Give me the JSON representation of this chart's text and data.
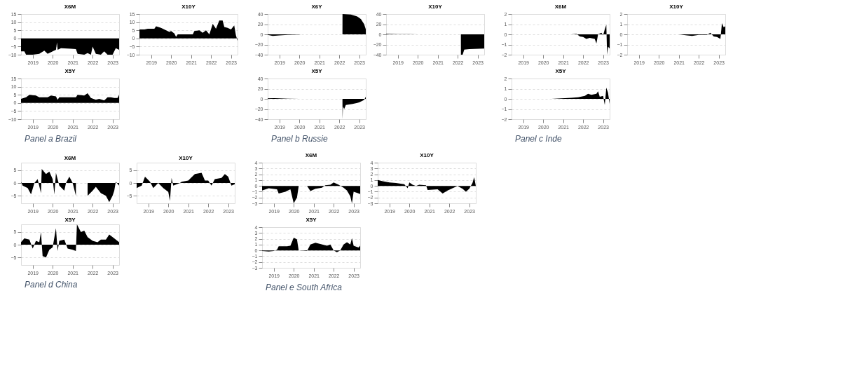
{
  "chart_data": [
    {
      "type": "area",
      "title": "X6M",
      "color": "#000000",
      "grid": "y",
      "xlim": [
        "2018-06",
        "2023-05"
      ],
      "xticks": [
        "2019",
        "2020",
        "2021",
        "2022",
        "2023"
      ],
      "ylim": [
        -10,
        15
      ],
      "yticks": [
        -10,
        -5,
        0,
        5,
        10,
        15
      ],
      "x": [
        "2018-06",
        "2018-08",
        "2018-09",
        "2019-01",
        "2019-05",
        "2019-08",
        "2019-10",
        "2020-01",
        "2020-03",
        "2020-03-20",
        "2020-04",
        "2020-06",
        "2020-12",
        "2021-03",
        "2021-04",
        "2021-08",
        "2021-10",
        "2021-12",
        "2022-01",
        "2022-03",
        "2022-06",
        "2022-08",
        "2022-10",
        "2023-01",
        "2023-03",
        "2023-05"
      ],
      "values": [
        -8,
        -8,
        -10,
        -10,
        -9.5,
        -7.5,
        -9.5,
        -8,
        -7,
        -2.5,
        -7,
        -6,
        -6.3,
        -6.5,
        -9.5,
        -10,
        -9,
        -10,
        -5,
        -9.5,
        -10,
        -8,
        -10,
        -10,
        -6,
        -7
      ]
    },
    {
      "type": "area",
      "title": "X10Y",
      "color": "#000000",
      "grid": "y",
      "xlim": [
        "2018-06",
        "2023-05"
      ],
      "xticks": [
        "2019",
        "2020",
        "2021",
        "2022",
        "2023"
      ],
      "ylim": [
        -10,
        15
      ],
      "yticks": [
        -10,
        -5,
        0,
        5,
        10,
        15
      ],
      "x": [
        "2018-06",
        "2018-09",
        "2018-11",
        "2019-03",
        "2019-04",
        "2019-07",
        "2019-10",
        "2019-12",
        "2020-01",
        "2020-03",
        "2020-04",
        "2020-05",
        "2020-10",
        "2021-02",
        "2021-03",
        "2021-06",
        "2021-08",
        "2021-10",
        "2021-12",
        "2022-02",
        "2022-04",
        "2022-06",
        "2022-08",
        "2022-09",
        "2022-11",
        "2023-01",
        "2023-03",
        "2023-04",
        "2023-05"
      ],
      "values": [
        5.5,
        5.5,
        6,
        6,
        7.5,
        6.5,
        5,
        4,
        4.5,
        3,
        1,
        2.5,
        2.5,
        2.5,
        4.5,
        5,
        3.5,
        5,
        2.5,
        9,
        6,
        11,
        11,
        7,
        6.5,
        5.5,
        8,
        2,
        -1.5
      ]
    },
    {
      "type": "area",
      "title": "X5Y",
      "color": "#000000",
      "grid": "y",
      "xlim": [
        "2018-06",
        "2023-05"
      ],
      "xticks": [
        "2019",
        "2020",
        "2021",
        "2022",
        "2023"
      ],
      "ylim": [
        -10,
        15
      ],
      "yticks": [
        -10,
        -5,
        0,
        5,
        10,
        15
      ],
      "annotations": [
        "Panel a Brazil"
      ],
      "x": [
        "2018-06",
        "2018-09",
        "2018-11",
        "2019-03",
        "2019-05",
        "2019-10",
        "2019-12",
        "2020-03",
        "2020-04",
        "2020-05",
        "2020-12",
        "2021-03",
        "2021-04",
        "2021-08",
        "2021-10",
        "2021-12",
        "2022-03",
        "2022-05",
        "2022-08",
        "2022-10",
        "2022-12",
        "2023-02",
        "2023-04",
        "2023-05"
      ],
      "values": [
        2.5,
        3.5,
        5,
        4.5,
        3.5,
        3.5,
        4.5,
        4,
        2,
        3.5,
        3.5,
        3.5,
        5,
        4.5,
        6,
        3,
        2,
        2.5,
        1.5,
        3.5,
        3.5,
        3,
        3,
        5
      ]
    },
    {
      "type": "area",
      "title": "X6Y",
      "color": "#000000",
      "grid": "y",
      "xlim": [
        "2018-06",
        "2023-05"
      ],
      "xticks": [
        "2019",
        "2020",
        "2021",
        "2022",
        "2023"
      ],
      "ylim": [
        -40,
        40
      ],
      "yticks": [
        -40,
        -20,
        0,
        20,
        40
      ],
      "x": [
        "2018-06",
        "2018-09",
        "2019-01",
        "2019-06",
        "2020-01",
        "2020-02",
        "2022-02-28",
        "2022-03-01",
        "2022-08",
        "2022-12",
        "2023-02",
        "2023-04",
        "2023-05"
      ],
      "values": [
        -1,
        -3,
        -2,
        -1,
        -0.5,
        0,
        0,
        40,
        39,
        35,
        30,
        20,
        10
      ]
    },
    {
      "type": "area",
      "title": "X10Y",
      "color": "#000000",
      "grid": "y",
      "xlim": [
        "2018-06",
        "2023-05"
      ],
      "xticks": [
        "2019",
        "2020",
        "2021",
        "2022",
        "2023"
      ],
      "ylim": [
        -40,
        40
      ],
      "yticks": [
        -40,
        -20,
        0,
        20,
        40
      ],
      "x": [
        "2018-06",
        "2019-01",
        "2019-08",
        "2020-01",
        "2022-02-28",
        "2022-03-01",
        "2022-04",
        "2022-05",
        "2022-08",
        "2023-05"
      ],
      "values": [
        1,
        0.5,
        0.3,
        0,
        0,
        -40,
        -40,
        -30,
        -29,
        -28
      ]
    },
    {
      "type": "area",
      "title": "X5Y",
      "color": "#000000",
      "grid": "y",
      "xlim": [
        "2018-06",
        "2023-05"
      ],
      "xticks": [
        "2019",
        "2020",
        "2021",
        "2022",
        "2023"
      ],
      "ylim": [
        -40,
        40
      ],
      "yticks": [
        -40,
        -20,
        0,
        20,
        40
      ],
      "annotations": [
        "Panel b  Russie"
      ],
      "x": [
        "2018-06",
        "2018-10",
        "2019-06",
        "2020-01",
        "2022-02-28",
        "2022-03-01",
        "2022-03-10",
        "2022-04",
        "2022-05",
        "2022-09",
        "2023-01",
        "2023-04",
        "2023-05"
      ],
      "values": [
        1,
        1.5,
        0.5,
        0,
        0,
        -40,
        -15,
        -20,
        -12,
        -10,
        -7,
        -2,
        4
      ]
    },
    {
      "type": "area",
      "title": "X6M",
      "color": "#000000",
      "grid": "y",
      "xlim": [
        "2018-06",
        "2023-05"
      ],
      "xticks": [
        "2019",
        "2020",
        "2021",
        "2022",
        "2023"
      ],
      "ylim": [
        -2,
        2
      ],
      "yticks": [
        -2,
        -1,
        0,
        1,
        2
      ],
      "x": [
        "2018-06",
        "2021-06",
        "2021-09",
        "2021-11",
        "2022-01",
        "2022-03",
        "2022-05",
        "2022-08",
        "2022-09",
        "2022-10",
        "2022-12",
        "2023-01",
        "2023-02",
        "2023-03",
        "2023-03-15",
        "2023-04",
        "2023-05"
      ],
      "values": [
        0,
        0,
        0.05,
        -0.2,
        -0.25,
        -0.45,
        -0.35,
        -0.45,
        -0.9,
        0,
        0.15,
        -0.1,
        0.5,
        0.95,
        -2,
        -1.2,
        -1.4
      ]
    },
    {
      "type": "area",
      "title": "X10Y",
      "color": "#000000",
      "grid": "y",
      "xlim": [
        "2018-06",
        "2023-05"
      ],
      "xticks": [
        "2019",
        "2020",
        "2021",
        "2022",
        "2023"
      ],
      "ylim": [
        -2,
        2
      ],
      "yticks": [
        -2,
        -1,
        0,
        1,
        2
      ],
      "x": [
        "2018-06",
        "2021-01",
        "2021-06",
        "2021-09",
        "2022-01",
        "2022-06",
        "2022-08",
        "2022-10",
        "2022-12",
        "2023-02",
        "2023-03",
        "2023-04",
        "2023-05"
      ],
      "values": [
        0,
        0,
        -0.1,
        -0.15,
        -0.05,
        -0.05,
        0.15,
        -0.2,
        -0.25,
        -0.45,
        1.1,
        0.7,
        0.8
      ]
    },
    {
      "type": "area",
      "title": "X5Y",
      "color": "#000000",
      "grid": "y",
      "xlim": [
        "2018-06",
        "2023-05"
      ],
      "xticks": [
        "2019",
        "2020",
        "2021",
        "2022",
        "2023"
      ],
      "ylim": [
        -2,
        2
      ],
      "yticks": [
        -2,
        -1,
        0,
        1,
        2
      ],
      "annotations": [
        "Panel c  Inde"
      ],
      "x": [
        "2018-06",
        "2020-06",
        "2021-06",
        "2021-10",
        "2022-02",
        "2022-04",
        "2022-06",
        "2022-09",
        "2022-10",
        "2022-11",
        "2023-01",
        "2023-02",
        "2023-03",
        "2023-04",
        "2023-05"
      ],
      "values": [
        0,
        0,
        0.1,
        0.15,
        0.3,
        0.5,
        0.4,
        0.5,
        0.75,
        0.2,
        0.3,
        -0.6,
        1.1,
        0.6,
        -0.5
      ]
    },
    {
      "type": "area",
      "title": "X6M",
      "color": "#000000",
      "grid": "y",
      "xlim": [
        "2018-06",
        "2023-05"
      ],
      "xticks": [
        "2019",
        "2020",
        "2021",
        "2022",
        "2023"
      ],
      "ylim": [
        -8,
        8
      ],
      "yticks": [
        -5,
        0,
        5
      ],
      "x": [
        "2018-06",
        "2018-07",
        "2018-10",
        "2018-12",
        "2019-02",
        "2019-04",
        "2019-06",
        "2019-06-15",
        "2019-09",
        "2019-11",
        "2020-01",
        "2020-02",
        "2020-03",
        "2020-05",
        "2020-08",
        "2020-09",
        "2020-11",
        "2021-01",
        "2021-03",
        "2021-04",
        "2021-08",
        "2021-10",
        "2022-01",
        "2022-03",
        "2022-06",
        "2022-09",
        "2022-11",
        "2023-01",
        "2023-02",
        "2023-03",
        "2023-05"
      ],
      "values": [
        0.5,
        -1,
        -2,
        -4.5,
        0,
        1.5,
        -4,
        5.5,
        3.5,
        4.5,
        1.5,
        -4.5,
        4,
        -1,
        -3,
        0,
        2.5,
        0,
        -5,
        null,
        null,
        -5,
        -3,
        -1.5,
        -4,
        -5,
        -7.5,
        -5,
        -3,
        0.5,
        -1
      ]
    },
    {
      "type": "area",
      "title": "X10Y",
      "color": "#000000",
      "grid": "y",
      "xlim": [
        "2018-06",
        "2023-05"
      ],
      "xticks": [
        "2019",
        "2020",
        "2021",
        "2022",
        "2023"
      ],
      "ylim": [
        -8,
        8
      ],
      "yticks": [
        -5,
        0,
        5
      ],
      "x": [
        "2018-06",
        "2018-09",
        "2018-11",
        "2019-02",
        "2019-04",
        "2019-07",
        "2019-10",
        "2020-01",
        "2020-02",
        "2020-03",
        "2020-04",
        "2020-08",
        "2020-09",
        "2021-01",
        "2021-05",
        "2021-09",
        "2021-11",
        "2022-01",
        "2022-03",
        "2022-05",
        "2022-09",
        "2022-11",
        "2023-01",
        "2023-03",
        "2023-05"
      ],
      "values": [
        -2,
        -1,
        2.5,
        0.5,
        -2,
        0,
        -2,
        -3.5,
        -7,
        2,
        -1,
        0,
        0.5,
        1,
        3.5,
        4,
        1,
        1,
        -1,
        1.5,
        2,
        3.5,
        2.5,
        -1,
        -0.5
      ]
    },
    {
      "type": "area",
      "title": "X5Y",
      "color": "#000000",
      "grid": "y",
      "xlim": [
        "2018-06",
        "2023-05"
      ],
      "xticks": [
        "2019",
        "2020",
        "2021",
        "2022",
        "2023"
      ],
      "ylim": [
        -8,
        8
      ],
      "yticks": [
        -5,
        0,
        5
      ],
      "annotations": [
        "Panel d  China"
      ],
      "x": [
        "2018-06",
        "2018-08",
        "2018-11",
        "2019-01",
        "2019-03",
        "2019-05",
        "2019-06",
        "2019-07",
        "2019-09",
        "2019-11",
        "2020-01",
        "2020-03",
        "2020-04",
        "2020-05",
        "2020-08",
        "2020-10",
        "2021-01",
        "2021-03",
        "2021-03-20",
        "2021-06",
        "2021-08",
        "2021-10",
        "2022-01",
        "2022-04",
        "2022-06",
        "2022-09",
        "2022-11",
        "2023-02",
        "2023-05"
      ],
      "values": [
        1,
        2.5,
        2,
        -1.5,
        1.5,
        1,
        5,
        -4.5,
        -5,
        -2,
        -1,
        6.5,
        -2.5,
        1.5,
        2,
        -1.5,
        -2,
        -2.5,
        8,
        5,
        5.5,
        3,
        1.5,
        1,
        2,
        2,
        4,
        2.5,
        1
      ]
    },
    {
      "type": "area",
      "title": "X6M",
      "color": "#000000",
      "grid": "y",
      "xlim": [
        "2018-06",
        "2023-05"
      ],
      "xticks": [
        "2019",
        "2020",
        "2021",
        "2022",
        "2023"
      ],
      "ylim": [
        -3,
        4
      ],
      "yticks": [
        -3,
        -2,
        -1,
        0,
        1,
        2,
        3,
        4
      ],
      "x": [
        "2018-06",
        "2018-10",
        "2019-03",
        "2019-04",
        "2019-08",
        "2019-11",
        "2020-01",
        "2020-03",
        "2020-04",
        "2020-09",
        "2020-11",
        "2021-02",
        "2021-06",
        "2021-08",
        "2021-11",
        "2022-01",
        "2022-04",
        "2022-07",
        "2022-09",
        "2022-11",
        "2022-12",
        "2023-01",
        "2023-05"
      ],
      "values": [
        -0.8,
        -0.4,
        -0.6,
        -1.3,
        -1,
        -0.6,
        -3,
        -2,
        0,
        0,
        -0.9,
        -0.5,
        -0.3,
        0.1,
        0.2,
        0.6,
        0.2,
        -0.3,
        -0.8,
        -1.8,
        -3,
        -1,
        -1.4
      ]
    },
    {
      "type": "area",
      "title": "X10Y",
      "color": "#000000",
      "grid": "y",
      "xlim": [
        "2018-06",
        "2023-05"
      ],
      "xticks": [
        "2019",
        "2020",
        "2021",
        "2022",
        "2023"
      ],
      "ylim": [
        -3,
        4
      ],
      "yticks": [
        -3,
        -2,
        -1,
        0,
        1,
        2,
        3,
        4
      ],
      "x": [
        "2018-06",
        "2018-09",
        "2019-01",
        "2019-05",
        "2019-10",
        "2019-12",
        "2020-01",
        "2020-03",
        "2020-05",
        "2020-07",
        "2020-11",
        "2020-12",
        "2021-06",
        "2021-09",
        "2021-12",
        "2022-03",
        "2022-06",
        "2022-09",
        "2022-11",
        "2023-01",
        "2023-03",
        "2023-04",
        "2023-05"
      ],
      "values": [
        1,
        0.8,
        0.6,
        0.5,
        0.3,
        -0.4,
        0.6,
        0.2,
        0,
        0.2,
        0.1,
        -0.7,
        -0.6,
        -1.3,
        -0.8,
        -0.4,
        0,
        -0.5,
        -1,
        -0.5,
        0.5,
        1.5,
        0
      ]
    },
    {
      "type": "area",
      "title": "X5Y",
      "color": "#000000",
      "grid": "y",
      "xlim": [
        "2018-06",
        "2023-05"
      ],
      "xticks": [
        "2019",
        "2020",
        "2021",
        "2022",
        "2023"
      ],
      "ylim": [
        -3,
        4
      ],
      "yticks": [
        -3,
        -2,
        -1,
        0,
        1,
        2,
        3,
        4
      ],
      "annotations": [
        "Panel e   South Africa"
      ],
      "x": [
        "2018-06",
        "2018-10",
        "2019-01",
        "2019-03",
        "2019-04",
        "2019-09",
        "2019-11",
        "2020-01",
        "2020-03",
        "2020-04",
        "2020-09",
        "2020-11",
        "2021-02",
        "2021-05",
        "2021-09",
        "2021-11",
        "2022-01",
        "2022-03",
        "2022-05",
        "2022-07",
        "2022-09",
        "2022-11",
        "2022-12",
        "2023-01",
        "2023-04",
        "2023-05"
      ],
      "values": [
        -0.1,
        -0.2,
        -0.1,
        0.1,
        0.7,
        0.7,
        0.8,
        2.2,
        1.9,
        0,
        -0.1,
        1,
        1.3,
        1.1,
        0.8,
        1,
        0,
        -0.3,
        0,
        1,
        1.4,
        1,
        2.1,
        0.8,
        0.5,
        0.8
      ]
    }
  ]
}
